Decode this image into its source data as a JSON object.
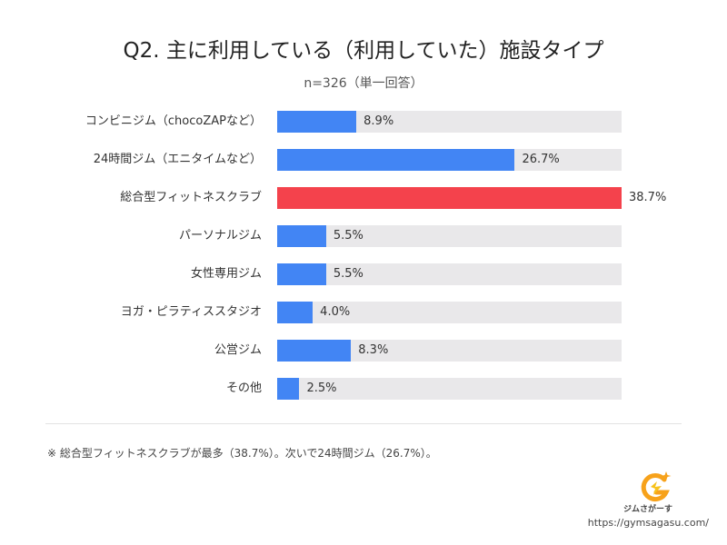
{
  "chart_data": {
    "type": "bar",
    "orientation": "horizontal",
    "title": "Q2. 主に利用している（利用していた）施設タイプ",
    "subtitle": "n=326（単一回答）",
    "categories": [
      "コンビニジム（chocoZAPなど）",
      "24時間ジム（エニタイムなど）",
      "総合型フィットネスクラブ",
      "パーソナルジム",
      "女性専用ジム",
      "ヨガ・ピラティススタジオ",
      "公営ジム",
      "その他"
    ],
    "values": [
      8.9,
      26.7,
      38.7,
      5.5,
      5.5,
      4.0,
      8.3,
      2.5
    ],
    "value_labels": [
      "8.9%",
      "26.7%",
      "38.7%",
      "5.5%",
      "5.5%",
      "4.0%",
      "8.3%",
      "2.5%"
    ],
    "xlim": [
      0,
      38.7
    ],
    "highlight_index": 2,
    "colors": {
      "bar": "#4285f4",
      "highlight": "#f4424c",
      "track": "#e9e8ea"
    },
    "grid": false,
    "legend": "none"
  },
  "footer": {
    "note": "※ 総合型フィットネスクラブが最多（38.7%）。次いで24時間ジム（26.7%）。",
    "brand": "ジムさがーす",
    "url": "https://gymsagasu.com/"
  }
}
